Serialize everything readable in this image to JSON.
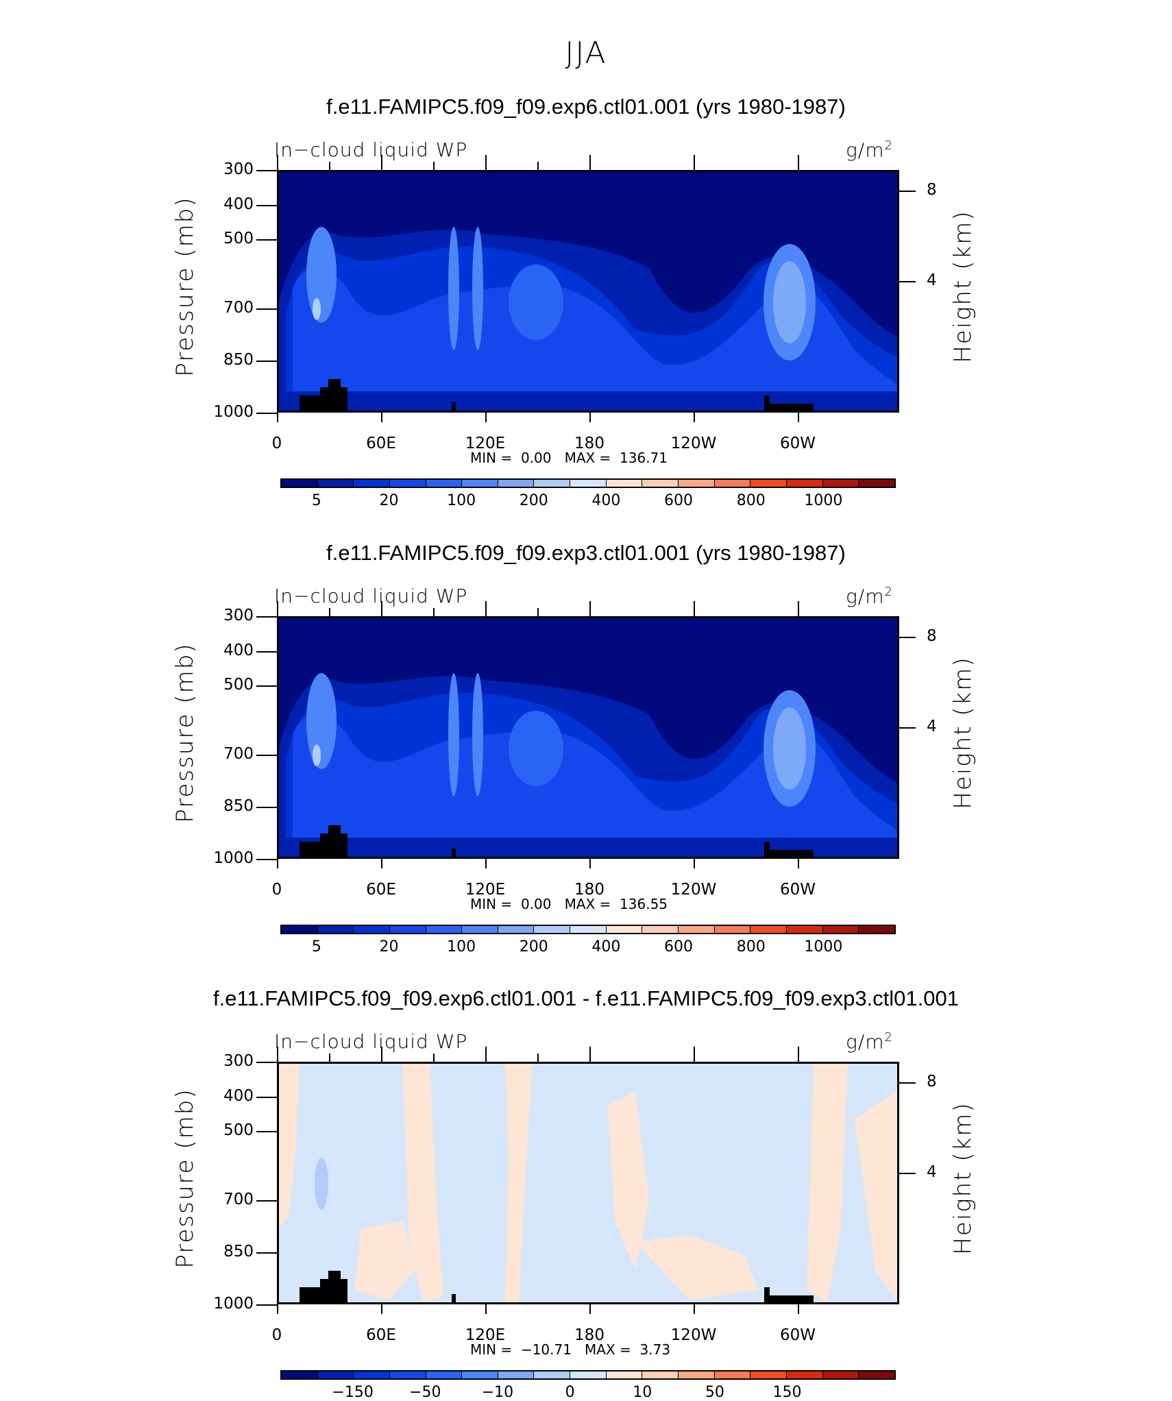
{
  "figure": {
    "title": "JJA"
  },
  "chart_data": [
    {
      "type": "heatmap",
      "title": "f.e11.FAMIPC5.f09_f09.exp6.ctl01.001 (yrs 1980-1987)",
      "variable": "In−cloud liquid WP",
      "units_base": "g/m",
      "units_sup": "2",
      "ylabel": "Pressure (mb)",
      "ylabel_right": "Height (km)",
      "yticks": [
        "300",
        "400",
        "500",
        "700",
        "850",
        "1000"
      ],
      "yticks_right": [
        "8",
        "4"
      ],
      "xticks": [
        "0",
        "60E",
        "120E",
        "180",
        "120W",
        "60W"
      ],
      "ylim": [
        1000,
        300
      ],
      "min_label": "MIN =",
      "min_value": "0.00",
      "max_label": "MAX =",
      "max_value": "136.71",
      "colorbar_labels": [
        "5",
        "20",
        "100",
        "200",
        "400",
        "600",
        "800",
        "1000"
      ]
    },
    {
      "type": "heatmap",
      "title": "f.e11.FAMIPC5.f09_f09.exp3.ctl01.001 (yrs 1980-1987)",
      "variable": "In−cloud liquid WP",
      "units_base": "g/m",
      "units_sup": "2",
      "ylabel": "Pressure (mb)",
      "ylabel_right": "Height (km)",
      "yticks": [
        "300",
        "400",
        "500",
        "700",
        "850",
        "1000"
      ],
      "yticks_right": [
        "8",
        "4"
      ],
      "xticks": [
        "0",
        "60E",
        "120E",
        "180",
        "120W",
        "60W"
      ],
      "ylim": [
        1000,
        300
      ],
      "min_label": "MIN =",
      "min_value": "0.00",
      "max_label": "MAX =",
      "max_value": "136.55",
      "colorbar_labels": [
        "5",
        "20",
        "100",
        "200",
        "400",
        "600",
        "800",
        "1000"
      ]
    },
    {
      "type": "heatmap",
      "title": "f.e11.FAMIPC5.f09_f09.exp6.ctl01.001 - f.e11.FAMIPC5.f09_f09.exp3.ctl01.001",
      "variable": "In−cloud liquid WP",
      "units_base": "g/m",
      "units_sup": "2",
      "ylabel": "Pressure (mb)",
      "ylabel_right": "Height (km)",
      "yticks": [
        "300",
        "400",
        "500",
        "700",
        "850",
        "1000"
      ],
      "yticks_right": [
        "8",
        "4"
      ],
      "xticks": [
        "0",
        "60E",
        "120E",
        "180",
        "120W",
        "60W"
      ],
      "ylim": [
        1000,
        300
      ],
      "min_label": "MIN =",
      "min_value": "−10.71",
      "max_label": "MAX =",
      "max_value": "3.73",
      "colorbar_labels": [
        "−150",
        "−50",
        "−10",
        "0",
        "10",
        "50",
        "150"
      ]
    }
  ],
  "colors": {
    "palette": [
      "#000a7e",
      "#0020b0",
      "#0034d6",
      "#1448ec",
      "#2a64f4",
      "#4c86f8",
      "#7ea8f8",
      "#b0ccf8",
      "#d6e6fa",
      "#fde6d6",
      "#fccfb5",
      "#f9a884",
      "#f77c55",
      "#f24b24",
      "#d92a0e",
      "#b0170a",
      "#7e0808"
    ],
    "topo": "#000000"
  }
}
